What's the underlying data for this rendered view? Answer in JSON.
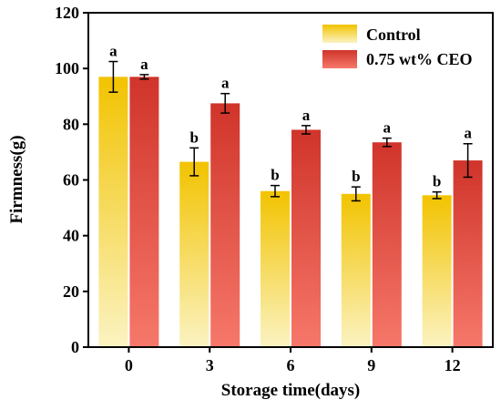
{
  "chart_data": {
    "type": "bar",
    "xlabel": "Storage time(days)",
    "ylabel": "Firmness(g)",
    "ylim": [
      0,
      120
    ],
    "yticks": [
      0,
      20,
      40,
      60,
      80,
      100,
      120
    ],
    "categories": [
      "0",
      "3",
      "6",
      "9",
      "12"
    ],
    "grid": false,
    "legend_position": "top-right",
    "series": [
      {
        "name": "Control",
        "values": [
          97,
          66.5,
          56,
          55,
          54.5
        ],
        "errors": [
          5.5,
          5,
          2,
          2.5,
          1.2
        ],
        "significance": [
          "a",
          "b",
          "b",
          "b",
          "b"
        ],
        "color_top": "#f2c300",
        "color_bottom": "#fbf3c2"
      },
      {
        "name": "0.75 wt% CEO",
        "values": [
          97,
          87.5,
          78,
          73.5,
          67
        ],
        "errors": [
          0.8,
          3.5,
          1.5,
          1.5,
          6
        ],
        "significance": [
          "a",
          "a",
          "a",
          "a",
          "a"
        ],
        "color_top": "#d0342a",
        "color_bottom": "#f6786a"
      }
    ]
  }
}
